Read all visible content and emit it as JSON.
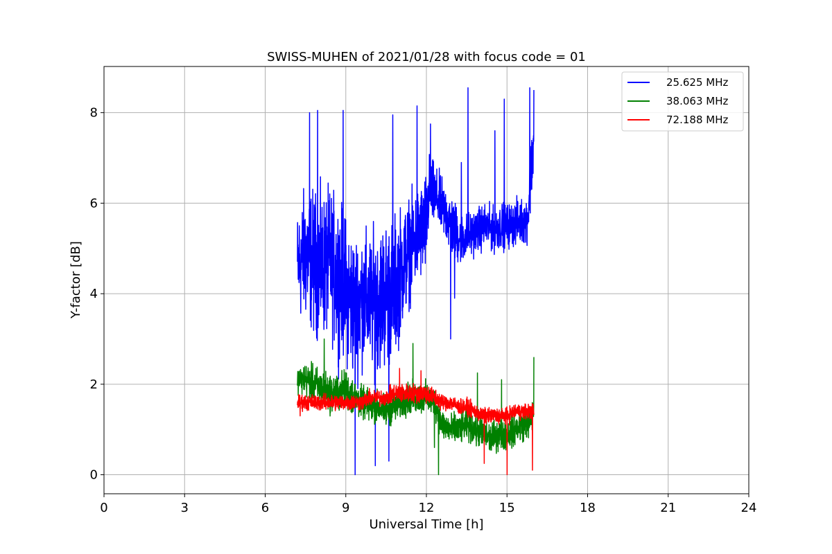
{
  "chart_data": {
    "type": "line",
    "title": "SWISS-MUHEN of 2021/01/28 with focus code = 01",
    "xlabel": "Universal Time [h]",
    "ylabel": "Y-factor [dB]",
    "xlim": [
      0,
      24
    ],
    "ylim": [
      -0.42,
      9.02
    ],
    "xticks": [
      0,
      3,
      6,
      9,
      12,
      15,
      18,
      21,
      24
    ],
    "yticks": [
      0,
      2,
      4,
      6,
      8
    ],
    "grid": true,
    "legend_position": "top-right",
    "series": [
      {
        "name": "25.625 MHz",
        "color": "#0000ff",
        "x": [
          7.2,
          7.5,
          7.8,
          8.1,
          8.4,
          8.7,
          9.0,
          9.3,
          9.6,
          9.9,
          10.2,
          10.5,
          10.8,
          11.1,
          11.4,
          11.7,
          12.0,
          12.1,
          12.4,
          12.7,
          13.0,
          13.3,
          13.6,
          13.9,
          14.2,
          14.5,
          14.8,
          15.1,
          15.4,
          15.7,
          15.8,
          15.9,
          16.0
        ],
        "center": [
          4.6,
          4.9,
          4.7,
          4.6,
          4.7,
          4.4,
          4.1,
          3.7,
          3.9,
          3.8,
          3.9,
          4.0,
          4.1,
          4.6,
          5.0,
          5.3,
          5.5,
          6.3,
          6.1,
          5.8,
          5.4,
          5.2,
          5.3,
          5.4,
          5.5,
          5.4,
          5.5,
          5.5,
          5.6,
          5.6,
          5.8,
          6.9,
          7.2
        ],
        "amp": [
          1.7,
          2.1,
          2.2,
          2.2,
          2.2,
          2.4,
          2.2,
          2.3,
          2.1,
          2.1,
          2.2,
          2.3,
          2.2,
          1.9,
          1.6,
          1.5,
          1.6,
          1.1,
          0.9,
          0.9,
          1.0,
          0.8,
          0.7,
          0.7,
          0.7,
          0.7,
          0.7,
          0.7,
          0.7,
          0.7,
          0.8,
          1.3,
          1.2
        ],
        "spikes": [
          [
            7.65,
            8.0
          ],
          [
            7.95,
            8.05
          ],
          [
            8.9,
            8.05
          ],
          [
            10.75,
            7.95
          ],
          [
            11.65,
            8.15
          ],
          [
            12.15,
            7.75
          ],
          [
            13.3,
            6.9
          ],
          [
            13.55,
            8.55
          ],
          [
            14.55,
            7.6
          ],
          [
            14.9,
            8.3
          ],
          [
            15.85,
            8.55
          ],
          [
            16.0,
            8.5
          ],
          [
            9.35,
            0.0
          ],
          [
            10.1,
            0.2
          ],
          [
            10.6,
            0.3
          ],
          [
            12.9,
            3.0
          ],
          [
            13.05,
            3.9
          ]
        ]
      },
      {
        "name": "38.063 MHz",
        "color": "#008000",
        "x": [
          7.2,
          7.5,
          7.8,
          8.1,
          8.4,
          8.7,
          9.0,
          9.3,
          9.6,
          9.9,
          10.2,
          10.5,
          10.8,
          11.1,
          11.4,
          11.7,
          12.0,
          12.3,
          12.6,
          12.9,
          13.2,
          13.5,
          13.8,
          14.1,
          14.4,
          14.7,
          15.0,
          15.3,
          15.6,
          15.9,
          16.0
        ],
        "center": [
          2.1,
          2.1,
          2.0,
          1.9,
          1.8,
          1.8,
          1.9,
          1.7,
          1.6,
          1.5,
          1.5,
          1.4,
          1.5,
          1.6,
          1.7,
          1.7,
          1.7,
          1.6,
          1.1,
          1.0,
          1.0,
          1.1,
          1.0,
          0.9,
          0.8,
          0.9,
          0.9,
          1.0,
          1.1,
          1.2,
          1.5
        ],
        "amp": [
          0.4,
          0.5,
          0.6,
          0.6,
          0.6,
          0.6,
          0.6,
          0.6,
          0.5,
          0.5,
          0.5,
          0.5,
          0.5,
          0.5,
          0.5,
          0.5,
          0.5,
          0.5,
          0.5,
          0.5,
          0.5,
          0.5,
          0.5,
          0.5,
          0.5,
          0.5,
          0.5,
          0.5,
          0.5,
          0.5,
          0.5
        ],
        "spikes": [
          [
            8.2,
            3.0
          ],
          [
            11.5,
            2.9
          ],
          [
            12.45,
            0.0
          ],
          [
            13.9,
            2.25
          ],
          [
            14.8,
            2.1
          ],
          [
            16.0,
            2.6
          ],
          [
            12.3,
            0.6
          ]
        ]
      },
      {
        "name": "72.188 MHz",
        "color": "#ff0000",
        "x": [
          7.2,
          7.5,
          7.8,
          8.1,
          8.4,
          8.7,
          9.0,
          9.3,
          9.6,
          9.9,
          10.2,
          10.5,
          10.8,
          11.1,
          11.4,
          11.7,
          12.0,
          12.3,
          12.6,
          12.9,
          13.2,
          13.5,
          13.8,
          14.1,
          14.4,
          14.7,
          15.0,
          15.3,
          15.6,
          15.9,
          16.0
        ],
        "center": [
          1.6,
          1.6,
          1.6,
          1.6,
          1.6,
          1.6,
          1.6,
          1.6,
          1.6,
          1.7,
          1.7,
          1.7,
          1.8,
          1.8,
          1.8,
          1.8,
          1.8,
          1.7,
          1.6,
          1.6,
          1.5,
          1.5,
          1.4,
          1.3,
          1.3,
          1.3,
          1.3,
          1.4,
          1.4,
          1.4,
          1.4
        ],
        "amp": [
          0.25,
          0.25,
          0.25,
          0.25,
          0.25,
          0.25,
          0.25,
          0.25,
          0.25,
          0.25,
          0.25,
          0.25,
          0.3,
          0.3,
          0.3,
          0.3,
          0.3,
          0.3,
          0.25,
          0.25,
          0.25,
          0.25,
          0.25,
          0.25,
          0.25,
          0.25,
          0.25,
          0.25,
          0.25,
          0.25,
          0.25
        ],
        "spikes": [
          [
            11.0,
            2.35
          ],
          [
            11.8,
            2.3
          ],
          [
            14.15,
            0.25
          ],
          [
            15.0,
            0.0
          ],
          [
            15.95,
            0.1
          ],
          [
            7.3,
            1.3
          ]
        ]
      }
    ]
  }
}
